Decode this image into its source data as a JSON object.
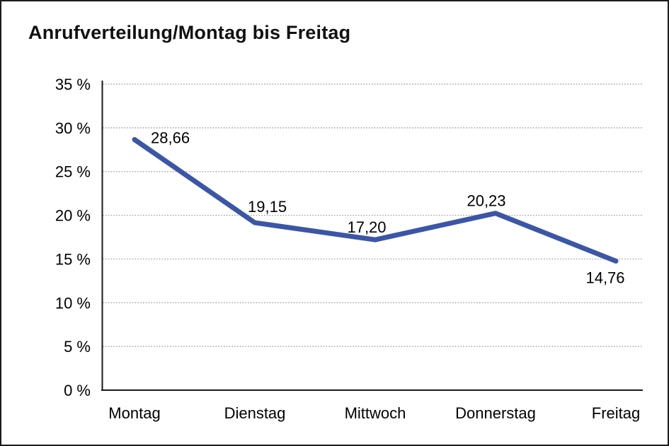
{
  "chart_data": {
    "type": "line",
    "title": "Anrufverteilung/Montag bis Freitag",
    "categories": [
      "Montag",
      "Dienstag",
      "Mittwoch",
      "Donnerstag",
      "Freitag"
    ],
    "series": [
      {
        "name": "Anrufverteilung",
        "values": [
          28.66,
          19.15,
          17.2,
          20.23,
          14.76
        ],
        "point_labels": [
          "28,66",
          "19,15",
          "17,20",
          "20,23",
          "14,76"
        ]
      }
    ],
    "xlabel": "",
    "ylabel": "",
    "ylim": [
      0,
      35
    ],
    "y_tick_step": 5,
    "y_ticks": [
      {
        "value": 0,
        "label": "0 %"
      },
      {
        "value": 5,
        "label": "5 %"
      },
      {
        "value": 10,
        "label": "10 %"
      },
      {
        "value": 15,
        "label": "15 %"
      },
      {
        "value": 20,
        "label": "20 %"
      },
      {
        "value": 25,
        "label": "25 %"
      },
      {
        "value": 30,
        "label": "30 %"
      },
      {
        "value": 35,
        "label": "35 %"
      }
    ],
    "grid": "horizontal-dotted",
    "legend_position": "none",
    "markers": "none",
    "colors": {
      "line": "#3B56A7",
      "gridline": "#8f8f8f",
      "axis": "#1a1a1a",
      "text": "#000000",
      "background": "#ffffff",
      "frame_border": "#1c1c1c"
    }
  }
}
